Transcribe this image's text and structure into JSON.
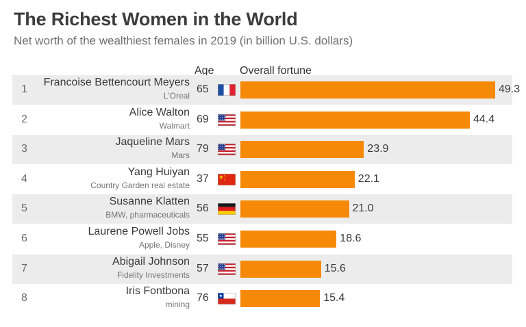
{
  "title": "The Richest Women in the World",
  "subtitle": "Net worth of the wealthiest females in 2019 (in billion U.S. dollars)",
  "columns": {
    "age": "Age",
    "fortune": "Overall fortune"
  },
  "colors": {
    "bar": "#f68a08",
    "row_shade": "#ececec"
  },
  "chart_data": {
    "type": "bar",
    "orientation": "horizontal",
    "title": "The Richest Women in the World",
    "subtitle": "Net worth of the wealthiest females in 2019 (in billion U.S. dollars)",
    "value_label": "Overall fortune",
    "grid": false,
    "rows": [
      {
        "rank": "1",
        "name": "Francoise Bettencourt Meyers",
        "company": "L'Oreal",
        "age": "65",
        "flag": "france-flag-icon",
        "value": 49.3,
        "value_label": "49.3"
      },
      {
        "rank": "2",
        "name": "Alice Walton",
        "company": "Walmart",
        "age": "69",
        "flag": "usa-flag-icon",
        "value": 44.4,
        "value_label": "44.4"
      },
      {
        "rank": "3",
        "name": "Jaqueline Mars",
        "company": "Mars",
        "age": "79",
        "flag": "usa-flag-icon",
        "value": 23.9,
        "value_label": "23.9"
      },
      {
        "rank": "4",
        "name": "Yang Huiyan",
        "company": "Country Garden real estate",
        "age": "37",
        "flag": "china-flag-icon",
        "value": 22.1,
        "value_label": "22.1"
      },
      {
        "rank": "5",
        "name": "Susanne Klatten",
        "company": "BMW, pharmaceuticals",
        "age": "56",
        "flag": "germany-flag-icon",
        "value": 21.0,
        "value_label": "21.0"
      },
      {
        "rank": "6",
        "name": "Laurene Powell Jobs",
        "company": "Apple, Disney",
        "age": "55",
        "flag": "usa-flag-icon",
        "value": 18.6,
        "value_label": "18.6"
      },
      {
        "rank": "7",
        "name": "Abigail Johnson",
        "company": "Fidelity Investments",
        "age": "57",
        "flag": "usa-flag-icon",
        "value": 15.6,
        "value_label": "15.6"
      },
      {
        "rank": "8",
        "name": "Iris Fontbona",
        "company": "mining",
        "age": "76",
        "flag": "chile-flag-icon",
        "value": 15.4,
        "value_label": "15.4"
      }
    ]
  }
}
